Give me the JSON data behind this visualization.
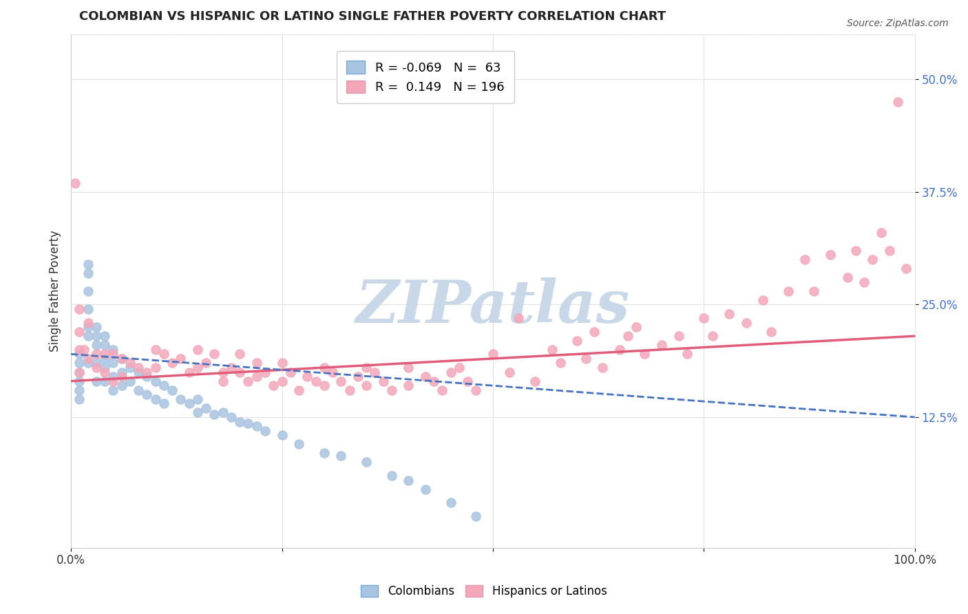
{
  "title": "COLOMBIAN VS HISPANIC OR LATINO SINGLE FATHER POVERTY CORRELATION CHART",
  "source": "Source: ZipAtlas.com",
  "ylabel": "Single Father Poverty",
  "ytick_labels": [
    "12.5%",
    "25.0%",
    "37.5%",
    "50.0%"
  ],
  "ytick_values": [
    0.125,
    0.25,
    0.375,
    0.5
  ],
  "xlim": [
    0.0,
    1.0
  ],
  "ylim": [
    -0.02,
    0.55
  ],
  "legend_blue_R": "-0.069",
  "legend_blue_N": "63",
  "legend_pink_R": "0.149",
  "legend_pink_N": "196",
  "blue_color": "#a8c4e0",
  "blue_line_color": "#4472c4",
  "pink_color": "#f4a7b9",
  "pink_line_color": "#e05c7a",
  "watermark": "ZIPatlas",
  "watermark_color": "#c8d8e8",
  "blue_scatter_x": [
    0.01,
    0.01,
    0.01,
    0.01,
    0.01,
    0.01,
    0.02,
    0.02,
    0.02,
    0.02,
    0.02,
    0.02,
    0.02,
    0.03,
    0.03,
    0.03,
    0.03,
    0.03,
    0.04,
    0.04,
    0.04,
    0.04,
    0.04,
    0.05,
    0.05,
    0.05,
    0.05,
    0.06,
    0.06,
    0.06,
    0.07,
    0.07,
    0.08,
    0.08,
    0.09,
    0.09,
    0.1,
    0.1,
    0.11,
    0.11,
    0.12,
    0.13,
    0.14,
    0.15,
    0.15,
    0.16,
    0.17,
    0.18,
    0.19,
    0.2,
    0.21,
    0.22,
    0.23,
    0.25,
    0.27,
    0.3,
    0.32,
    0.35,
    0.38,
    0.4,
    0.42,
    0.45,
    0.48
  ],
  "blue_scatter_y": [
    0.195,
    0.185,
    0.175,
    0.165,
    0.155,
    0.145,
    0.295,
    0.285,
    0.265,
    0.245,
    0.225,
    0.215,
    0.185,
    0.225,
    0.215,
    0.205,
    0.185,
    0.165,
    0.215,
    0.205,
    0.19,
    0.18,
    0.165,
    0.2,
    0.185,
    0.17,
    0.155,
    0.19,
    0.175,
    0.16,
    0.18,
    0.165,
    0.175,
    0.155,
    0.17,
    0.15,
    0.165,
    0.145,
    0.16,
    0.14,
    0.155,
    0.145,
    0.14,
    0.145,
    0.13,
    0.135,
    0.128,
    0.13,
    0.125,
    0.12,
    0.118,
    0.115,
    0.11,
    0.105,
    0.095,
    0.085,
    0.082,
    0.075,
    0.06,
    0.055,
    0.045,
    0.03,
    0.015
  ],
  "pink_scatter_x": [
    0.005,
    0.01,
    0.01,
    0.01,
    0.01,
    0.015,
    0.02,
    0.02,
    0.03,
    0.03,
    0.04,
    0.04,
    0.05,
    0.05,
    0.06,
    0.06,
    0.07,
    0.08,
    0.09,
    0.1,
    0.1,
    0.11,
    0.12,
    0.13,
    0.14,
    0.15,
    0.15,
    0.16,
    0.17,
    0.18,
    0.18,
    0.19,
    0.2,
    0.2,
    0.21,
    0.22,
    0.22,
    0.23,
    0.24,
    0.25,
    0.25,
    0.26,
    0.27,
    0.28,
    0.29,
    0.3,
    0.3,
    0.31,
    0.32,
    0.33,
    0.34,
    0.35,
    0.35,
    0.36,
    0.37,
    0.38,
    0.4,
    0.4,
    0.42,
    0.43,
    0.44,
    0.45,
    0.46,
    0.47,
    0.48,
    0.5,
    0.52,
    0.53,
    0.55,
    0.57,
    0.58,
    0.6,
    0.61,
    0.62,
    0.63,
    0.65,
    0.66,
    0.67,
    0.68,
    0.7,
    0.72,
    0.73,
    0.75,
    0.76,
    0.78,
    0.8,
    0.82,
    0.83,
    0.85,
    0.87,
    0.88,
    0.9,
    0.92,
    0.93,
    0.94,
    0.95,
    0.96,
    0.97,
    0.98,
    0.99
  ],
  "pink_scatter_y": [
    0.385,
    0.245,
    0.22,
    0.2,
    0.175,
    0.2,
    0.23,
    0.19,
    0.195,
    0.18,
    0.195,
    0.175,
    0.195,
    0.165,
    0.19,
    0.17,
    0.185,
    0.18,
    0.175,
    0.2,
    0.18,
    0.195,
    0.185,
    0.19,
    0.175,
    0.2,
    0.18,
    0.185,
    0.195,
    0.175,
    0.165,
    0.18,
    0.195,
    0.175,
    0.165,
    0.185,
    0.17,
    0.175,
    0.16,
    0.185,
    0.165,
    0.175,
    0.155,
    0.17,
    0.165,
    0.18,
    0.16,
    0.175,
    0.165,
    0.155,
    0.17,
    0.18,
    0.16,
    0.175,
    0.165,
    0.155,
    0.18,
    0.16,
    0.17,
    0.165,
    0.155,
    0.175,
    0.18,
    0.165,
    0.155,
    0.195,
    0.175,
    0.235,
    0.165,
    0.2,
    0.185,
    0.21,
    0.19,
    0.22,
    0.18,
    0.2,
    0.215,
    0.225,
    0.195,
    0.205,
    0.215,
    0.195,
    0.235,
    0.215,
    0.24,
    0.23,
    0.255,
    0.22,
    0.265,
    0.3,
    0.265,
    0.305,
    0.28,
    0.31,
    0.275,
    0.3,
    0.33,
    0.31,
    0.475,
    0.29
  ],
  "pink_trend_x": [
    0.0,
    1.0
  ],
  "pink_trend_y": [
    0.165,
    0.215
  ],
  "blue_trend_x": [
    0.0,
    1.0
  ],
  "blue_trend_y": [
    0.195,
    0.125
  ],
  "background_color": "#ffffff",
  "grid_color": "#e0e0e0"
}
